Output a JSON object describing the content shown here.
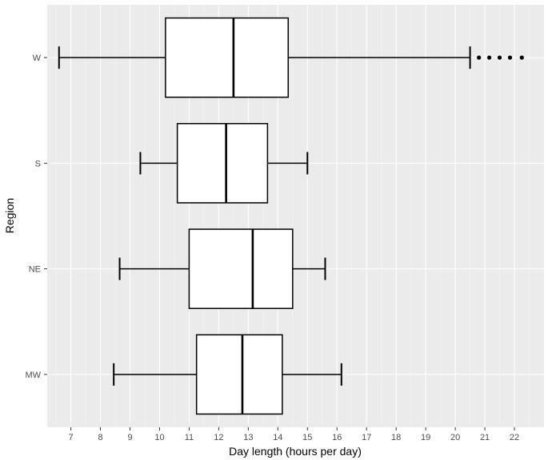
{
  "chart_data": {
    "type": "boxplot",
    "orientation": "horizontal",
    "xlabel": "Day length (hours per day)",
    "ylabel": "Region",
    "xlim": [
      6.2,
      23.0
    ],
    "x_ticks": [
      7,
      8,
      9,
      10,
      11,
      12,
      13,
      14,
      15,
      16,
      17,
      18,
      19,
      20,
      21,
      22
    ],
    "categories": [
      "W",
      "S",
      "NE",
      "MW"
    ],
    "boxes": [
      {
        "category": "W",
        "whisker_low": 6.6,
        "q1": 10.2,
        "median": 12.5,
        "q3": 14.35,
        "whisker_high": 20.5,
        "outliers": [
          20.8,
          21.15,
          21.5,
          21.85,
          22.25
        ]
      },
      {
        "category": "S",
        "whisker_low": 9.35,
        "q1": 10.6,
        "median": 12.25,
        "q3": 13.65,
        "whisker_high": 15.0,
        "outliers": []
      },
      {
        "category": "NE",
        "whisker_low": 8.65,
        "q1": 11.0,
        "median": 13.15,
        "q3": 14.5,
        "whisker_high": 15.6,
        "outliers": []
      },
      {
        "category": "MW",
        "whisker_low": 8.45,
        "q1": 11.25,
        "median": 12.8,
        "q3": 14.15,
        "whisker_high": 16.15,
        "outliers": []
      }
    ],
    "grid": true,
    "colors": {
      "panel": "#ebebeb",
      "grid_major": "#ffffff",
      "box_fill": "#ffffff",
      "stroke": "#000000"
    }
  }
}
